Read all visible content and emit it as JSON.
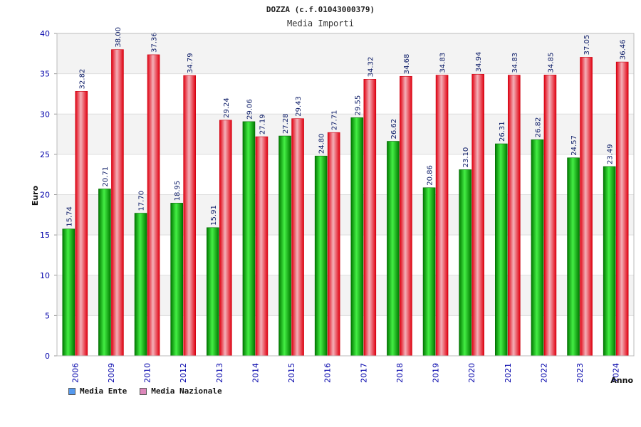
{
  "chart_data": {
    "type": "bar",
    "title": "DOZZA (c.f.01043000379)",
    "subtitle": "Media Importi",
    "xlabel": "Anno",
    "ylabel": "Euro",
    "ylim": [
      0,
      40
    ],
    "yticks": [
      "0",
      "5",
      "10",
      "15",
      "20",
      "25",
      "30",
      "35",
      "40"
    ],
    "categories": [
      "2006",
      "2009",
      "2010",
      "2012",
      "2013",
      "2014",
      "2015",
      "2016",
      "2017",
      "2018",
      "2019",
      "2020",
      "2021",
      "2022",
      "2023",
      "2024"
    ],
    "series": [
      {
        "name": "Media Ente",
        "color": "#00bb00",
        "legend_color": "#5599ee",
        "values": [
          15.74,
          20.71,
          17.7,
          18.95,
          15.91,
          29.06,
          27.28,
          24.8,
          29.55,
          26.62,
          20.86,
          23.1,
          26.31,
          26.82,
          24.57,
          23.49
        ],
        "labels": [
          "15.74",
          "20.71",
          "17.70",
          "18.95",
          "15.91",
          "29.06",
          "27.28",
          "24.80",
          "29.55",
          "26.62",
          "20.86",
          "23.10",
          "26.31",
          "26.82",
          "24.57",
          "23.49"
        ]
      },
      {
        "name": "Media Nazionale",
        "color": "#ee1122",
        "legend_color": "#dd88bb",
        "values": [
          32.82,
          38.0,
          37.36,
          34.79,
          29.24,
          27.19,
          29.43,
          27.71,
          34.32,
          34.68,
          34.83,
          34.94,
          34.83,
          34.85,
          37.05,
          36.46
        ],
        "labels": [
          "32.82",
          "38.00",
          "37.36",
          "34.79",
          "29.24",
          "27.19",
          "29.43",
          "27.71",
          "34.32",
          "34.68",
          "34.83",
          "34.94",
          "34.83",
          "34.85",
          "37.05",
          "36.46"
        ]
      }
    ]
  }
}
